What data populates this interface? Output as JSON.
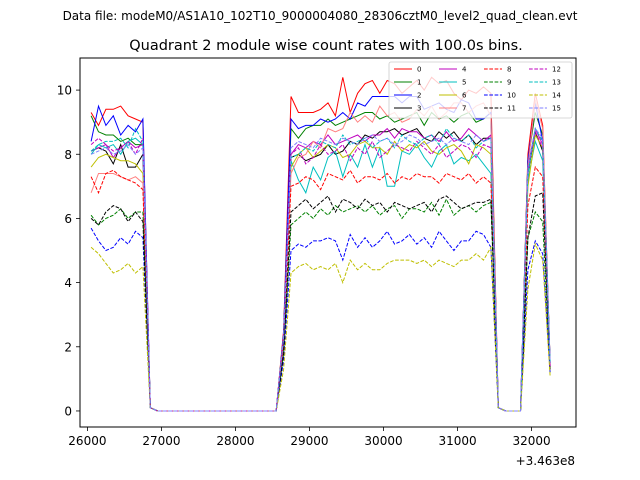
{
  "chart_data": {
    "type": "line",
    "suptitle": "Data file: modeM0/AS1A10_102T10_9000004080_28306cztM0_level2_quad_clean.evt",
    "title": "Quadrant 2 module wise count rates with 100.0s bins.",
    "xlabel": "",
    "ylabel": "",
    "x_offset_label": "+3.463e8",
    "xlim": [
      25900,
      32600
    ],
    "ylim": [
      -0.5,
      11
    ],
    "xticks": [
      26000,
      27000,
      28000,
      29000,
      30000,
      31000,
      32000
    ],
    "yticks": [
      0,
      2,
      4,
      6,
      8,
      10
    ],
    "legend_placement": "top-right",
    "x": [
      26050,
      26150,
      26250,
      26350,
      26450,
      26550,
      26650,
      26750,
      26850,
      26950,
      27050,
      27150,
      27250,
      27350,
      27450,
      27550,
      27650,
      27750,
      27850,
      27950,
      28050,
      28150,
      28250,
      28350,
      28450,
      28550,
      28650,
      28750,
      28850,
      28950,
      29050,
      29150,
      29250,
      29350,
      29450,
      29550,
      29650,
      29750,
      29850,
      29950,
      30050,
      30150,
      30250,
      30350,
      30450,
      30550,
      30650,
      30750,
      30850,
      30950,
      31050,
      31150,
      31250,
      31350,
      31450,
      31550,
      31650,
      31750,
      31850,
      31950,
      32050,
      32150,
      32250
    ],
    "series": [
      {
        "name": "0",
        "color": "#ff0000",
        "dash": "solid",
        "values": [
          9.3,
          8.9,
          9.4,
          9.4,
          9.5,
          9.2,
          9.1,
          9.0,
          0.1,
          0,
          0,
          0,
          0,
          0,
          0,
          0,
          0,
          0,
          0,
          0,
          0,
          0,
          0,
          0,
          0,
          0,
          2.5,
          9.8,
          9.3,
          9.3,
          9.3,
          9.4,
          9.6,
          9.2,
          10.4,
          9.3,
          9.9,
          10.2,
          10.3,
          9.9,
          10.3,
          10.2,
          9.9,
          10.1,
          10.3,
          10.0,
          10.4,
          10.2,
          10.3,
          9.9,
          9.7,
          10.0,
          9.9,
          10.1,
          9.9,
          0.1,
          0,
          0,
          0,
          8.0,
          9.9,
          8.9,
          1.5
        ]
      },
      {
        "name": "1",
        "color": "#008000",
        "dash": "solid",
        "values": [
          9.2,
          8.7,
          8.6,
          8.6,
          8.4,
          8.5,
          8.3,
          8.3,
          0.1,
          0,
          0,
          0,
          0,
          0,
          0,
          0,
          0,
          0,
          0,
          0,
          0,
          0,
          0,
          0,
          0,
          0,
          2.4,
          8.8,
          8.5,
          8.8,
          8.9,
          8.9,
          9.1,
          8.9,
          9.0,
          9.1,
          9.2,
          9.3,
          9.3,
          9.1,
          9.2,
          9.0,
          9.1,
          9.2,
          9.3,
          8.9,
          9.3,
          9.1,
          9.2,
          9.0,
          9.2,
          9.3,
          9.0,
          9.1,
          9.3,
          0.1,
          0,
          0,
          0,
          7.8,
          9.3,
          8.6,
          1.5
        ]
      },
      {
        "name": "2",
        "color": "#0000ff",
        "dash": "solid",
        "values": [
          8.4,
          9.5,
          8.9,
          9.2,
          8.6,
          8.9,
          8.7,
          9.1,
          0.1,
          0,
          0,
          0,
          0,
          0,
          0,
          0,
          0,
          0,
          0,
          0,
          0,
          0,
          0,
          0,
          0,
          0,
          2.4,
          9.1,
          8.8,
          8.9,
          8.9,
          9.1,
          9.0,
          9.1,
          9.3,
          9.1,
          9.6,
          9.5,
          9.8,
          9.8,
          9.8,
          9.8,
          9.6,
          9.8,
          9.8,
          9.4,
          9.5,
          9.6,
          9.4,
          9.3,
          9.7,
          9.6,
          9.1,
          9.1,
          9.3,
          0.1,
          0,
          0,
          0,
          7.8,
          9.6,
          8.4,
          1.5
        ]
      },
      {
        "name": "3",
        "color": "#000000",
        "dash": "solid",
        "values": [
          8.1,
          8.2,
          8.1,
          7.7,
          8.3,
          7.6,
          7.6,
          8.0,
          0.1,
          0,
          0,
          0,
          0,
          0,
          0,
          0,
          0,
          0,
          0,
          0,
          0,
          0,
          0,
          0,
          0,
          0,
          2.3,
          7.9,
          8.0,
          7.8,
          7.9,
          8.0,
          8.3,
          8.0,
          8.1,
          8.4,
          8.3,
          8.6,
          8.5,
          8.7,
          8.7,
          8.8,
          8.6,
          8.7,
          8.8,
          8.5,
          8.4,
          8.7,
          8.5,
          8.7,
          8.4,
          8.6,
          8.3,
          8.5,
          8.5,
          0.1,
          0,
          0,
          0,
          7.4,
          8.7,
          8.1,
          1.4
        ]
      },
      {
        "name": "4",
        "color": "#bf00bf",
        "dash": "solid",
        "values": [
          8.1,
          8.2,
          8.3,
          7.9,
          8.2,
          8.4,
          8.2,
          8.3,
          0.1,
          0,
          0,
          0,
          0,
          0,
          0,
          0,
          0,
          0,
          0,
          0,
          0,
          0,
          0,
          0,
          0,
          0,
          2.3,
          8.0,
          8.3,
          8.2,
          8.4,
          8.3,
          8.6,
          8.3,
          8.4,
          8.5,
          8.6,
          8.4,
          8.6,
          8.6,
          8.8,
          8.5,
          8.8,
          8.7,
          8.7,
          8.5,
          8.6,
          8.4,
          8.7,
          8.4,
          8.5,
          8.8,
          8.6,
          8.4,
          8.6,
          0.1,
          0,
          0,
          0,
          7.6,
          8.8,
          8.3,
          1.5
        ]
      },
      {
        "name": "5",
        "color": "#00bfbf",
        "dash": "solid",
        "values": [
          8.0,
          8.3,
          8.2,
          8.3,
          8.0,
          8.4,
          8.5,
          8.3,
          0.1,
          0,
          0,
          0,
          0,
          0,
          0,
          0,
          0,
          0,
          0,
          0,
          0,
          0,
          0,
          0,
          0,
          0,
          2.2,
          7.8,
          7.2,
          6.8,
          7.6,
          7.2,
          7.9,
          8.1,
          7.3,
          8.0,
          7.6,
          8.3,
          7.6,
          8.2,
          7.0,
          7.0,
          8.1,
          8.0,
          8.3,
          7.9,
          7.6,
          8.1,
          8.3,
          7.7,
          7.9,
          7.8,
          8.0,
          7.7,
          7.4,
          0.1,
          0,
          0,
          0,
          7.2,
          8.4,
          7.8,
          1.3
        ]
      },
      {
        "name": "6",
        "color": "#bfbf00",
        "dash": "solid",
        "values": [
          7.6,
          7.9,
          8.0,
          7.9,
          7.8,
          7.8,
          7.7,
          7.4,
          0.1,
          0,
          0,
          0,
          0,
          0,
          0,
          0,
          0,
          0,
          0,
          0,
          0,
          0,
          0,
          0,
          0,
          0,
          2.2,
          7.6,
          8.0,
          8.2,
          7.9,
          8.1,
          8.3,
          8.2,
          7.9,
          8.0,
          8.3,
          8.4,
          8.2,
          8.2,
          8.0,
          8.4,
          8.1,
          8.3,
          8.2,
          8.4,
          8.1,
          8.0,
          8.2,
          8.3,
          8.1,
          7.7,
          8.3,
          8.2,
          8.0,
          0.1,
          0,
          0,
          0,
          7.0,
          8.6,
          8.2,
          1.3
        ]
      },
      {
        "name": "7",
        "color": "#ff8080",
        "dash": "solid",
        "values": [
          6.8,
          7.4,
          7.4,
          7.4,
          7.3,
          7.2,
          7.3,
          7.1,
          0.1,
          0,
          0,
          0,
          0,
          0,
          0,
          0,
          0,
          0,
          0,
          0,
          0,
          0,
          0,
          0,
          0,
          0,
          2.1,
          7.4,
          7.9,
          8.0,
          8.4,
          8.2,
          8.8,
          8.7,
          8.8,
          9.3,
          9.0,
          9.2,
          9.0,
          9.5,
          9.2,
          9.3,
          9.0,
          9.1,
          9.4,
          9.2,
          9.5,
          9.1,
          9.3,
          9.6,
          9.6,
          9.3,
          9.5,
          9.6,
          9.2,
          0.1,
          0,
          0,
          0,
          7.6,
          9.7,
          8.8,
          1.4
        ]
      },
      {
        "name": "8",
        "color": "#ff0000",
        "dash": "dashed",
        "values": [
          7.3,
          6.8,
          7.4,
          7.5,
          7.3,
          7.2,
          7.1,
          6.9,
          0.1,
          0,
          0,
          0,
          0,
          0,
          0,
          0,
          0,
          0,
          0,
          0,
          0,
          0,
          0,
          0,
          0,
          0,
          2.1,
          7.0,
          7.1,
          7.3,
          7.2,
          6.9,
          7.4,
          7.3,
          7.2,
          7.5,
          7.1,
          7.3,
          7.3,
          7.2,
          7.4,
          7.1,
          7.3,
          7.2,
          7.4,
          7.3,
          7.3,
          7.1,
          7.4,
          7.3,
          7.2,
          7.4,
          7.1,
          7.3,
          7.1,
          0.1,
          0,
          0,
          0,
          6.4,
          7.6,
          7.3,
          1.3
        ]
      },
      {
        "name": "9",
        "color": "#008000",
        "dash": "dashed",
        "values": [
          6.1,
          5.8,
          6.0,
          6.1,
          6.3,
          6.0,
          6.2,
          6.2,
          0.1,
          0,
          0,
          0,
          0,
          0,
          0,
          0,
          0,
          0,
          0,
          0,
          0,
          0,
          0,
          0,
          0,
          0,
          1.8,
          5.8,
          6.0,
          6.2,
          6.0,
          6.3,
          6.1,
          6.4,
          6.2,
          6.3,
          6.4,
          6.2,
          6.4,
          6.1,
          6.3,
          6.4,
          6.0,
          6.3,
          6.3,
          6.2,
          6.5,
          6.1,
          6.6,
          6.1,
          6.3,
          6.4,
          6.2,
          6.4,
          6.5,
          0.1,
          0,
          0,
          0,
          5.4,
          6.2,
          5.9,
          1.2
        ]
      },
      {
        "name": "10",
        "color": "#0000ff",
        "dash": "dashed",
        "values": [
          5.7,
          5.3,
          5.0,
          5.1,
          5.4,
          5.2,
          5.6,
          5.4,
          0.1,
          0,
          0,
          0,
          0,
          0,
          0,
          0,
          0,
          0,
          0,
          0,
          0,
          0,
          0,
          0,
          0,
          0,
          1.6,
          5.0,
          5.2,
          5.1,
          5.3,
          5.3,
          5.4,
          5.3,
          4.7,
          5.5,
          5.1,
          5.4,
          5.1,
          5.3,
          5.6,
          5.2,
          5.3,
          5.5,
          5.2,
          5.4,
          5.1,
          5.6,
          5.3,
          5.0,
          5.3,
          5.3,
          5.6,
          5.5,
          5.1,
          0.1,
          0,
          0,
          0,
          4.4,
          5.3,
          4.9,
          1.2
        ]
      },
      {
        "name": "11",
        "color": "#000000",
        "dash": "dashed",
        "values": [
          6.0,
          5.8,
          6.2,
          6.4,
          6.3,
          5.9,
          6.2,
          5.9,
          0.1,
          0,
          0,
          0,
          0,
          0,
          0,
          0,
          0,
          0,
          0,
          0,
          0,
          0,
          0,
          0,
          0,
          0,
          1.8,
          6.2,
          6.4,
          6.6,
          6.3,
          6.5,
          6.7,
          6.2,
          6.6,
          6.5,
          6.3,
          6.6,
          6.4,
          6.5,
          6.2,
          6.5,
          6.4,
          6.3,
          6.4,
          6.5,
          6.2,
          6.6,
          6.7,
          6.5,
          6.3,
          6.4,
          6.5,
          6.5,
          6.6,
          0.1,
          0,
          0,
          0,
          5.4,
          6.7,
          6.8,
          1.3
        ]
      },
      {
        "name": "12",
        "color": "#bf00bf",
        "dash": "dashed",
        "values": [
          8.3,
          8.5,
          8.3,
          8.1,
          8.2,
          8.4,
          8.0,
          8.5,
          0.1,
          0,
          0,
          0,
          0,
          0,
          0,
          0,
          0,
          0,
          0,
          0,
          0,
          0,
          0,
          0,
          0,
          0,
          2.3,
          8.0,
          8.2,
          7.7,
          7.9,
          8.3,
          8.0,
          8.1,
          8.3,
          7.8,
          8.2,
          8.0,
          8.4,
          7.9,
          8.1,
          8.3,
          8.2,
          8.1,
          8.4,
          8.2,
          8.0,
          8.3,
          7.9,
          8.1,
          8.3,
          8.2,
          7.9,
          8.3,
          8.2,
          0.1,
          0,
          0,
          0,
          7.5,
          8.7,
          8.2,
          1.4
        ]
      },
      {
        "name": "13",
        "color": "#00bfbf",
        "dash": "dashed",
        "values": [
          8.1,
          8.3,
          8.4,
          8.4,
          8.5,
          8.2,
          8.8,
          8.4,
          0.1,
          0,
          0,
          0,
          0,
          0,
          0,
          0,
          0,
          0,
          0,
          0,
          0,
          0,
          0,
          0,
          0,
          0,
          2.3,
          7.9,
          8.0,
          8.2,
          8.1,
          8.4,
          8.3,
          8.2,
          8.6,
          8.3,
          8.4,
          8.5,
          8.2,
          8.4,
          8.5,
          8.2,
          8.6,
          8.4,
          8.3,
          8.5,
          8.6,
          8.3,
          8.8,
          8.5,
          8.4,
          8.6,
          8.2,
          8.4,
          8.5,
          0.1,
          0,
          0,
          0,
          7.4,
          8.8,
          8.4,
          1.5
        ]
      },
      {
        "name": "14",
        "color": "#bfbf00",
        "dash": "dashed",
        "values": [
          5.1,
          4.9,
          4.6,
          4.3,
          4.4,
          4.6,
          4.3,
          4.5,
          0.1,
          0,
          0,
          0,
          0,
          0,
          0,
          0,
          0,
          0,
          0,
          0,
          0,
          0,
          0,
          0,
          0,
          0,
          1.3,
          4.3,
          4.5,
          4.6,
          4.4,
          4.5,
          4.4,
          4.6,
          4.0,
          4.7,
          4.4,
          4.6,
          4.4,
          4.4,
          4.6,
          4.7,
          4.7,
          4.7,
          4.6,
          4.7,
          4.5,
          4.7,
          4.6,
          4.5,
          4.7,
          4.7,
          4.9,
          4.7,
          5.1,
          0.1,
          0,
          0,
          0,
          3.8,
          5.2,
          4.7,
          1.1
        ]
      },
      {
        "name": "15",
        "color": "#8080ff",
        "dash": "dashed",
        "values": [
          8.0,
          8.1,
          8.2,
          8.0,
          8.1,
          8.3,
          8.0,
          8.2,
          0.1,
          0,
          0,
          0,
          0,
          0,
          0,
          0,
          0,
          0,
          0,
          0,
          0,
          0,
          0,
          0,
          0,
          0,
          2.3,
          8.2,
          8.4,
          8.3,
          8.2,
          8.5,
          8.4,
          8.3,
          8.5,
          8.4,
          8.3,
          8.5,
          8.6,
          8.4,
          8.5,
          8.3,
          8.4,
          8.6,
          8.5,
          8.3,
          8.4,
          8.5,
          8.3,
          8.5,
          8.4,
          8.3,
          8.6,
          8.4,
          8.5,
          0.1,
          0,
          0,
          0,
          7.6,
          8.8,
          8.5,
          1.5
        ]
      }
    ]
  }
}
